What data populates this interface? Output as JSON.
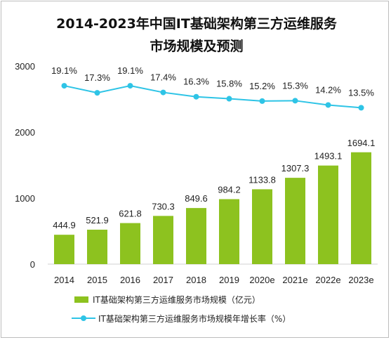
{
  "chart_data": {
    "type": "bar",
    "title_lines": [
      "2014-2023年中国IT基础架构第三方运维服务",
      "市场规模及预测"
    ],
    "categories": [
      "2014",
      "2015",
      "2016",
      "2017",
      "2018",
      "2019",
      "2020e",
      "2021e",
      "2022e",
      "2023e"
    ],
    "ylim": [
      0,
      3000
    ],
    "yticks": [
      "0",
      "1000",
      "2000",
      "3000"
    ],
    "series": [
      {
        "name": "IT基础架构第三方运维服务市场规模（亿元）",
        "type": "bar",
        "color": "#8dc21f",
        "values": [
          444.9,
          521.9,
          621.8,
          730.3,
          849.6,
          984.2,
          1133.8,
          1307.3,
          1493.1,
          1694.1
        ],
        "labels": [
          "444.9",
          "521.9",
          "621.8",
          "730.3",
          "849.6",
          "984.2",
          "1133.8",
          "1307.3",
          "1493.1",
          "1694.1"
        ]
      },
      {
        "name": "IT基础架构第三方运维服务市场规模年增长率（%）",
        "type": "line",
        "color": "#2ec4e6",
        "values": [
          19.1,
          17.3,
          19.1,
          17.4,
          16.3,
          15.8,
          15.2,
          15.3,
          14.2,
          13.5
        ],
        "labels": [
          "19.1%",
          "17.3%",
          "19.1%",
          "17.4%",
          "16.3%",
          "15.8%",
          "15.2%",
          "15.3%",
          "14.2%",
          "13.5%"
        ]
      }
    ],
    "grid": false,
    "legend_position": "bottom"
  }
}
